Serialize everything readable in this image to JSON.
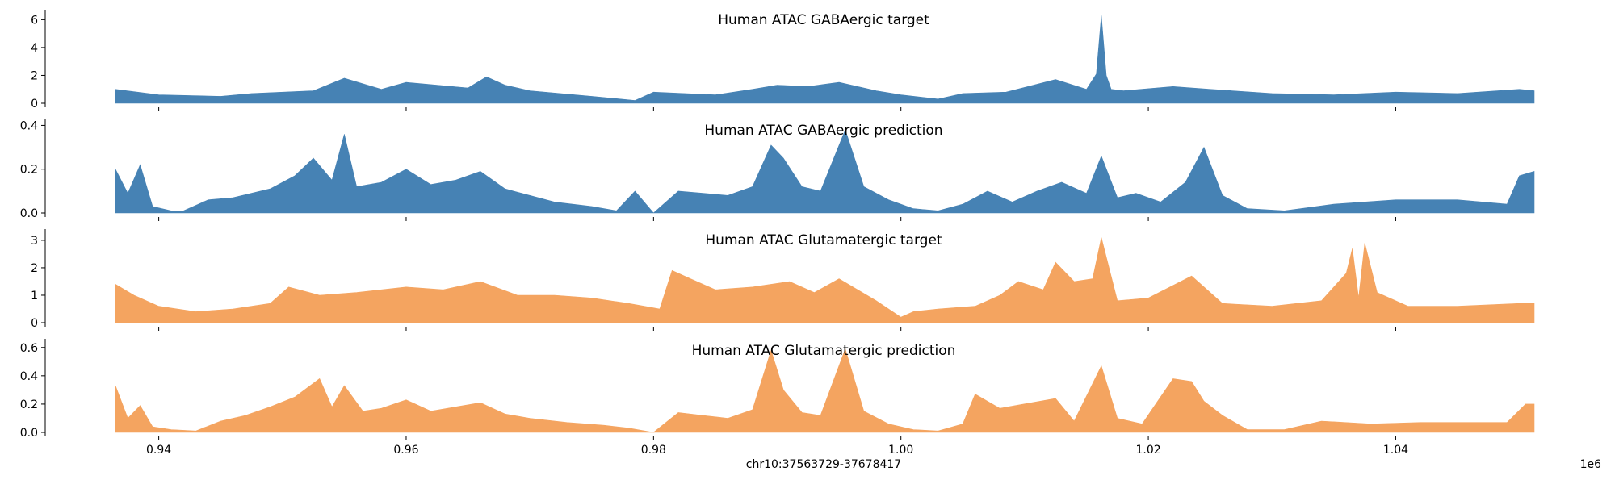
{
  "chart_data": {
    "type": "area",
    "xlabel": "chr10:37563729-37678417",
    "x_offset_label": "1e6",
    "xlim": [
      0.9365,
      1.0512
    ],
    "x_tick_labels": [
      "0.94",
      "0.96",
      "0.98",
      "1.00",
      "1.02",
      "1.04"
    ],
    "x_tick_values": [
      0.94,
      0.96,
      0.98,
      1.0,
      1.02,
      1.04
    ],
    "grid": false,
    "panels": [
      {
        "title": "Human ATAC GABAergic target",
        "color": "#4682b4",
        "ylim": [
          0,
          6.6
        ],
        "y_ticks": [
          0,
          2,
          4,
          6
        ],
        "y_tick_labels": [
          "0",
          "2",
          "4",
          "6"
        ],
        "x": [
          0.9365,
          0.94,
          0.945,
          0.9475,
          0.9525,
          0.955,
          0.958,
          0.96,
          0.965,
          0.9665,
          0.968,
          0.97,
          0.975,
          0.9785,
          0.98,
          0.9825,
          0.985,
          0.988,
          0.99,
          0.9925,
          0.995,
          0.998,
          1.0,
          1.003,
          1.005,
          1.0085,
          1.0125,
          1.015,
          1.0158,
          1.0162,
          1.0166,
          1.017,
          1.018,
          1.022,
          1.025,
          1.03,
          1.035,
          1.04,
          1.045,
          1.05,
          1.0512
        ],
        "values": [
          1.0,
          0.6,
          0.5,
          0.7,
          0.9,
          1.8,
          1.0,
          1.5,
          1.1,
          1.9,
          1.3,
          0.9,
          0.5,
          0.2,
          0.8,
          0.7,
          0.6,
          1.0,
          1.3,
          1.2,
          1.5,
          0.9,
          0.6,
          0.3,
          0.7,
          0.8,
          1.7,
          1.0,
          2.1,
          6.3,
          2.0,
          1.0,
          0.9,
          1.2,
          1.0,
          0.7,
          0.6,
          0.8,
          0.7,
          1.0,
          0.9
        ]
      },
      {
        "title": "Human ATAC GABAergic prediction",
        "color": "#4682b4",
        "ylim": [
          0,
          0.42
        ],
        "y_ticks": [
          0.0,
          0.2,
          0.4
        ],
        "y_tick_labels": [
          "0.0",
          "0.2",
          "0.4"
        ],
        "x": [
          0.9365,
          0.9375,
          0.9385,
          0.9395,
          0.941,
          0.942,
          0.944,
          0.946,
          0.949,
          0.951,
          0.9525,
          0.954,
          0.955,
          0.956,
          0.958,
          0.96,
          0.962,
          0.964,
          0.966,
          0.968,
          0.97,
          0.972,
          0.975,
          0.977,
          0.9785,
          0.98,
          0.982,
          0.984,
          0.986,
          0.988,
          0.9895,
          0.9905,
          0.992,
          0.9935,
          0.9955,
          0.997,
          0.999,
          1.001,
          1.003,
          1.005,
          1.007,
          1.009,
          1.011,
          1.013,
          1.015,
          1.0162,
          1.0175,
          1.019,
          1.021,
          1.023,
          1.0245,
          1.026,
          1.028,
          1.031,
          1.035,
          1.04,
          1.045,
          1.049,
          1.05,
          1.0512
        ],
        "values": [
          0.2,
          0.09,
          0.22,
          0.03,
          0.01,
          0.01,
          0.06,
          0.07,
          0.11,
          0.17,
          0.25,
          0.15,
          0.36,
          0.12,
          0.14,
          0.2,
          0.13,
          0.15,
          0.19,
          0.11,
          0.08,
          0.05,
          0.03,
          0.01,
          0.1,
          0.0,
          0.1,
          0.09,
          0.08,
          0.12,
          0.31,
          0.25,
          0.12,
          0.1,
          0.38,
          0.12,
          0.06,
          0.02,
          0.01,
          0.04,
          0.1,
          0.05,
          0.1,
          0.14,
          0.09,
          0.26,
          0.07,
          0.09,
          0.05,
          0.14,
          0.3,
          0.08,
          0.02,
          0.01,
          0.04,
          0.06,
          0.06,
          0.04,
          0.17,
          0.19
        ]
      },
      {
        "title": "Human ATAC Glutamatergic target",
        "color": "#f4a460",
        "ylim": [
          0,
          3.35
        ],
        "y_ticks": [
          0,
          1,
          2,
          3
        ],
        "y_tick_labels": [
          "0",
          "1",
          "2",
          "3"
        ],
        "x": [
          0.9365,
          0.938,
          0.94,
          0.943,
          0.946,
          0.949,
          0.9505,
          0.953,
          0.956,
          0.96,
          0.963,
          0.966,
          0.969,
          0.972,
          0.975,
          0.978,
          0.9805,
          0.9815,
          0.983,
          0.985,
          0.988,
          0.991,
          0.993,
          0.995,
          0.998,
          1.0,
          1.001,
          1.003,
          1.006,
          1.008,
          1.0095,
          1.0115,
          1.0125,
          1.014,
          1.0155,
          1.0162,
          1.0175,
          1.02,
          1.0235,
          1.026,
          1.03,
          1.034,
          1.036,
          1.0365,
          1.037,
          1.0375,
          1.0385,
          1.041,
          1.045,
          1.05,
          1.0512
        ],
        "values": [
          1.4,
          1.0,
          0.6,
          0.4,
          0.5,
          0.7,
          1.3,
          1.0,
          1.1,
          1.3,
          1.2,
          1.5,
          1.0,
          1.0,
          0.9,
          0.7,
          0.5,
          1.9,
          1.6,
          1.2,
          1.3,
          1.5,
          1.1,
          1.6,
          0.8,
          0.2,
          0.4,
          0.5,
          0.6,
          1.0,
          1.5,
          1.2,
          2.2,
          1.5,
          1.6,
          3.1,
          0.8,
          0.9,
          1.7,
          0.7,
          0.6,
          0.8,
          1.8,
          2.7,
          0.9,
          2.9,
          1.1,
          0.6,
          0.6,
          0.7,
          0.7
        ]
      },
      {
        "title": "Human ATAC Glutamatergic prediction",
        "color": "#f4a460",
        "ylim": [
          0,
          0.65
        ],
        "y_ticks": [
          0.0,
          0.2,
          0.4,
          0.6
        ],
        "y_tick_labels": [
          "0.0",
          "0.2",
          "0.4",
          "0.6"
        ],
        "x": [
          0.9365,
          0.9375,
          0.9385,
          0.9395,
          0.941,
          0.943,
          0.945,
          0.947,
          0.949,
          0.951,
          0.953,
          0.954,
          0.955,
          0.9565,
          0.958,
          0.96,
          0.962,
          0.964,
          0.966,
          0.968,
          0.97,
          0.973,
          0.976,
          0.978,
          0.98,
          0.982,
          0.984,
          0.986,
          0.988,
          0.9895,
          0.9905,
          0.992,
          0.9935,
          0.9955,
          0.997,
          0.999,
          1.001,
          1.003,
          1.005,
          1.006,
          1.008,
          1.0125,
          1.014,
          1.0162,
          1.0175,
          1.0195,
          1.022,
          1.0235,
          1.0245,
          1.026,
          1.028,
          1.031,
          1.034,
          1.038,
          1.042,
          1.046,
          1.049,
          1.0505,
          1.0512
        ],
        "values": [
          0.33,
          0.1,
          0.19,
          0.04,
          0.02,
          0.01,
          0.08,
          0.12,
          0.18,
          0.25,
          0.38,
          0.18,
          0.33,
          0.15,
          0.17,
          0.23,
          0.15,
          0.18,
          0.21,
          0.13,
          0.1,
          0.07,
          0.05,
          0.03,
          0.0,
          0.14,
          0.12,
          0.1,
          0.16,
          0.58,
          0.3,
          0.14,
          0.12,
          0.59,
          0.15,
          0.06,
          0.02,
          0.01,
          0.06,
          0.27,
          0.17,
          0.24,
          0.08,
          0.47,
          0.1,
          0.06,
          0.38,
          0.36,
          0.22,
          0.12,
          0.02,
          0.02,
          0.08,
          0.06,
          0.07,
          0.07,
          0.07,
          0.2,
          0.2
        ]
      }
    ]
  }
}
